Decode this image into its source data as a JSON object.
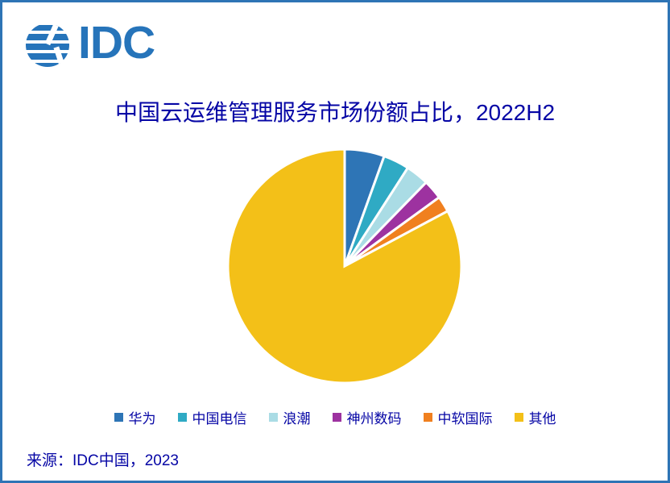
{
  "window": {
    "border_color": "#2e74b5",
    "background": "#ffffff"
  },
  "logo": {
    "text": "IDC",
    "color": "#2674ba"
  },
  "header": {
    "title": "中国云运维管理服务市场份额占比，2022H2",
    "title_color": "#0505a5"
  },
  "chart_data": {
    "type": "pie",
    "title": "中国云运维管理服务市场份额占比，2022H2",
    "units": "percent of market share (estimated from slice angles, no data labels shown)",
    "start_angle_deg": 0,
    "direction": "clockwise",
    "legend_position": "bottom",
    "slice_gap_color": "#ffffff",
    "slices": [
      {
        "label": "华为",
        "value_pct": 5.5,
        "color": "#2e75b6"
      },
      {
        "label": "中国电信",
        "value_pct": 3.6,
        "color": "#2faac4"
      },
      {
        "label": "浪潮",
        "value_pct": 3.2,
        "color": "#aadce5"
      },
      {
        "label": "神州数码",
        "value_pct": 2.7,
        "color": "#9d32a0"
      },
      {
        "label": "中软国际",
        "value_pct": 2.2,
        "color": "#f0801f"
      },
      {
        "label": "其他",
        "value_pct": 82.8,
        "color": "#f3c018"
      }
    ]
  },
  "footer": {
    "source": "来源：IDC中国，2023"
  }
}
